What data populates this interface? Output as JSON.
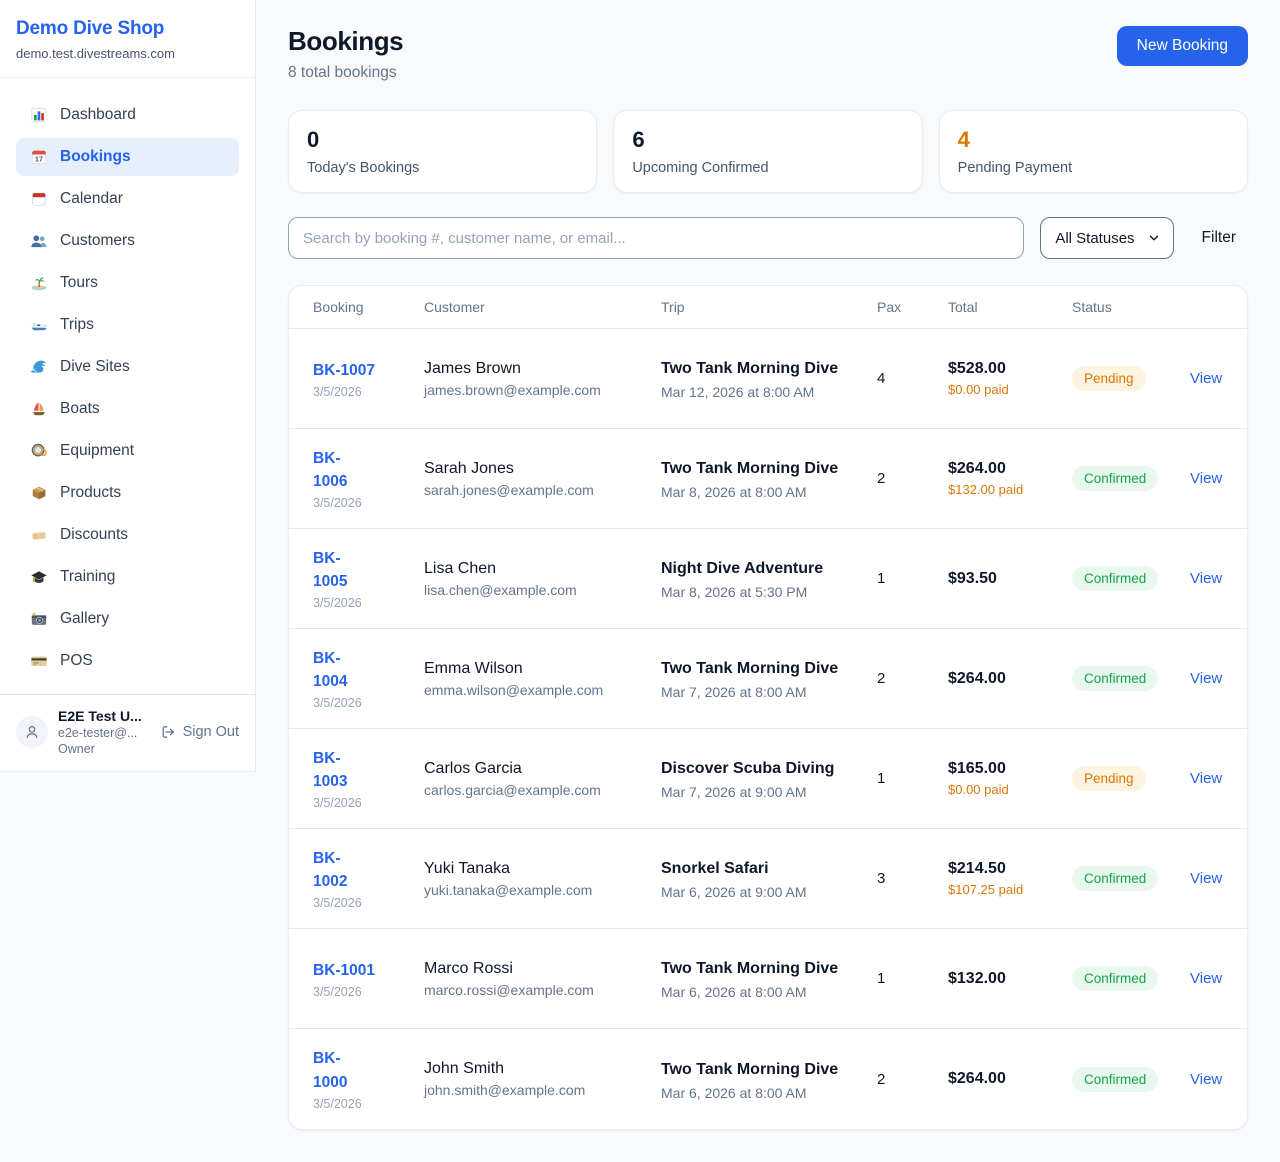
{
  "sidebar": {
    "brand": "Demo Dive Shop",
    "domain": "demo.test.divestreams.com",
    "nav": [
      {
        "label": "Dashboard",
        "icon": "bar-chart-icon",
        "active": false
      },
      {
        "label": "Bookings",
        "icon": "bookings-calendar-icon",
        "active": true
      },
      {
        "label": "Calendar",
        "icon": "calendar-icon",
        "active": false
      },
      {
        "label": "Customers",
        "icon": "customers-icon",
        "active": false
      },
      {
        "label": "Tours",
        "icon": "island-icon",
        "active": false
      },
      {
        "label": "Trips",
        "icon": "speedboat-icon",
        "active": false
      },
      {
        "label": "Dive Sites",
        "icon": "wave-icon",
        "active": false
      },
      {
        "label": "Boats",
        "icon": "sailboat-icon",
        "active": false
      },
      {
        "label": "Equipment",
        "icon": "dive-mask-icon",
        "active": false
      },
      {
        "label": "Products",
        "icon": "package-icon",
        "active": false
      },
      {
        "label": "Discounts",
        "icon": "tag-icon",
        "active": false
      },
      {
        "label": "Training",
        "icon": "graduation-cap-icon",
        "active": false
      },
      {
        "label": "Gallery",
        "icon": "camera-icon",
        "active": false
      },
      {
        "label": "POS",
        "icon": "credit-card-icon",
        "active": false
      }
    ],
    "user": {
      "name": "E2E Test U...",
      "email": "e2e-tester@...",
      "role": "Owner",
      "sign_out_label": "Sign Out"
    }
  },
  "header": {
    "title": "Bookings",
    "subtitle": "8 total bookings",
    "new_booking_label": "New Booking"
  },
  "stats": [
    {
      "value": "0",
      "label": "Today's Bookings",
      "value_color": "#0f172a"
    },
    {
      "value": "6",
      "label": "Upcoming Confirmed",
      "value_color": "#0f172a"
    },
    {
      "value": "4",
      "label": "Pending Payment",
      "value_color": "#d97706"
    }
  ],
  "filters": {
    "search_placeholder": "Search by booking #, customer name, or email...",
    "status_value": "All Statuses",
    "filter_label": "Filter"
  },
  "table": {
    "columns": [
      "Booking",
      "Customer",
      "Trip",
      "Pax",
      "Total",
      "Status"
    ],
    "view_label": "View",
    "rows": [
      {
        "id": "BK-1007",
        "id_one_line": true,
        "date": "3/5/2026",
        "customer_name": "James Brown",
        "customer_email": "james.brown@example.com",
        "trip_name": "Two Tank Morning Dive",
        "trip_datetime": "Mar 12, 2026 at 8:00 AM",
        "pax": "4",
        "total": "$528.00",
        "paid": "$0.00 paid",
        "status": "Pending"
      },
      {
        "id": "BK-1006",
        "id_one_line": false,
        "date": "3/5/2026",
        "customer_name": "Sarah Jones",
        "customer_email": "sarah.jones@example.com",
        "trip_name": "Two Tank Morning Dive",
        "trip_datetime": "Mar 8, 2026 at 8:00 AM",
        "pax": "2",
        "total": "$264.00",
        "paid": "$132.00 paid",
        "status": "Confirmed"
      },
      {
        "id": "BK-1005",
        "id_one_line": false,
        "date": "3/5/2026",
        "customer_name": "Lisa Chen",
        "customer_email": "lisa.chen@example.com",
        "trip_name": "Night Dive Adventure",
        "trip_datetime": "Mar 8, 2026 at 5:30 PM",
        "pax": "1",
        "total": "$93.50",
        "paid": "",
        "status": "Confirmed"
      },
      {
        "id": "BK-1004",
        "id_one_line": false,
        "date": "3/5/2026",
        "customer_name": "Emma Wilson",
        "customer_email": "emma.wilson@example.com",
        "trip_name": "Two Tank Morning Dive",
        "trip_datetime": "Mar 7, 2026 at 8:00 AM",
        "pax": "2",
        "total": "$264.00",
        "paid": "",
        "status": "Confirmed"
      },
      {
        "id": "BK-1003",
        "id_one_line": false,
        "date": "3/5/2026",
        "customer_name": "Carlos Garcia",
        "customer_email": "carlos.garcia@example.com",
        "trip_name": "Discover Scuba Diving",
        "trip_datetime": "Mar 7, 2026 at 9:00 AM",
        "pax": "1",
        "total": "$165.00",
        "paid": "$0.00 paid",
        "status": "Pending"
      },
      {
        "id": "BK-1002",
        "id_one_line": false,
        "date": "3/5/2026",
        "customer_name": "Yuki Tanaka",
        "customer_email": "yuki.tanaka@example.com",
        "trip_name": "Snorkel Safari",
        "trip_datetime": "Mar 6, 2026 at 9:00 AM",
        "pax": "3",
        "total": "$214.50",
        "paid": "$107.25 paid",
        "status": "Confirmed"
      },
      {
        "id": "BK-1001",
        "id_one_line": true,
        "date": "3/5/2026",
        "customer_name": "Marco Rossi",
        "customer_email": "marco.rossi@example.com",
        "trip_name": "Two Tank Morning Dive",
        "trip_datetime": "Mar 6, 2026 at 8:00 AM",
        "pax": "1",
        "total": "$132.00",
        "paid": "",
        "status": "Confirmed"
      },
      {
        "id": "BK-1000",
        "id_one_line": false,
        "date": "3/5/2026",
        "customer_name": "John Smith",
        "customer_email": "john.smith@example.com",
        "trip_name": "Two Tank Morning Dive",
        "trip_datetime": "Mar 6, 2026 at 8:00 AM",
        "pax": "2",
        "total": "$264.00",
        "paid": "",
        "status": "Confirmed"
      }
    ]
  },
  "colors": {
    "brand_blue": "#2563eb",
    "page_bg": "#f8fafc",
    "pending_text": "#d97706",
    "pending_bg": "#fdf3e0",
    "confirmed_text": "#16a34a",
    "confirmed_bg": "#e9f8ef"
  }
}
